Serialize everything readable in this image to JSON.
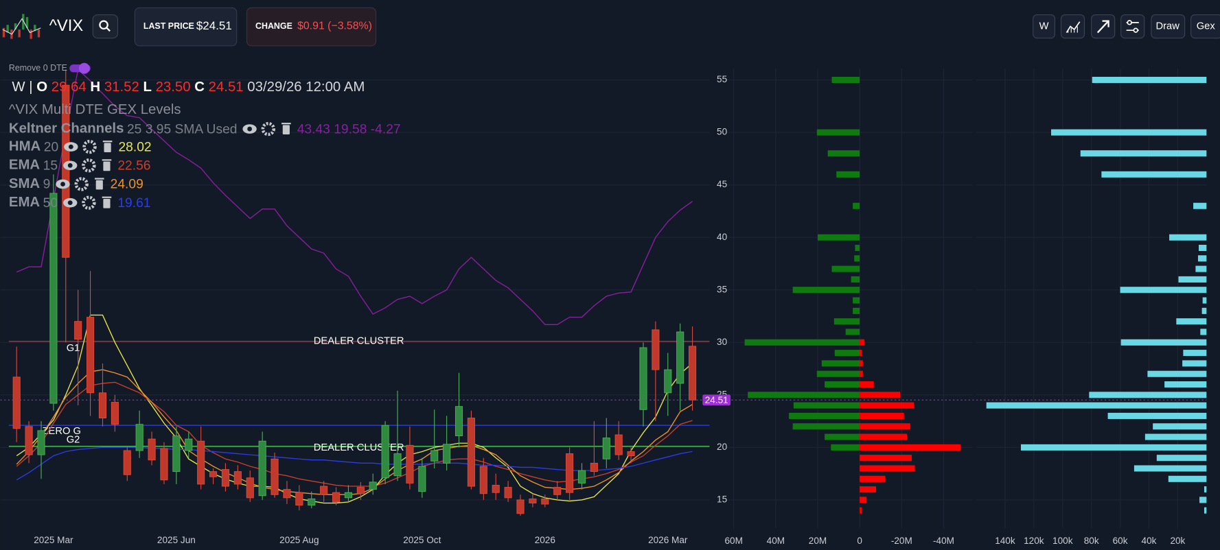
{
  "header": {
    "symbol": "^VIX",
    "last_price_label": "LAST PRICE",
    "last_price": "$24.51",
    "change_label": "CHANGE",
    "change": "$0.91 (−3.58%)",
    "buttons": [
      "W",
      "Draw",
      "Gex"
    ]
  },
  "toggle_label": "Remove 0 DTE",
  "ohlc": {
    "interval": "W |",
    "open_label": "O",
    "open": "29.64",
    "high_label": "H",
    "high": "31.52",
    "low_label": "L",
    "low": "23.50",
    "close_label": "C",
    "close": "24.51",
    "timestamp": "03/29/26 12:00 AM"
  },
  "study_title": "^VIX Multi DTE GEX Levels",
  "chart_data": [
    {
      "type": "candlestick",
      "categories": [
        null,
        null,
        null,
        "2025 Mar",
        null,
        null,
        null,
        null,
        null,
        null,
        null,
        null,
        null,
        "2025 Jun",
        null,
        null,
        null,
        null,
        null,
        null,
        null,
        null,
        null,
        "2025 Aug",
        null,
        null,
        null,
        null,
        null,
        null,
        null,
        null,
        null,
        "2025 Oct",
        null,
        null,
        null,
        null,
        null,
        null,
        null,
        null,
        null,
        "2026",
        null,
        null,
        null,
        null,
        null,
        null,
        null,
        null,
        null,
        "2026 Mar",
        null,
        null
      ],
      "open": [
        26.7,
        22.0,
        19.3,
        24.2,
        54.5,
        32.0,
        32.4,
        25.2,
        24.3,
        19.7,
        19.7,
        20.8,
        19.9,
        17.7,
        19.7,
        20.6,
        17.7,
        17.9,
        17.7,
        17.1,
        15.4,
        18.9,
        16.0,
        15.7,
        14.5,
        16.3,
        15.7,
        15.2,
        16.2,
        16.0,
        17.1,
        17.3,
        20.2,
        15.8,
        18.7,
        18.5,
        21.1,
        22.8,
        18.2,
        16.4,
        16.2,
        15.0,
        15.1,
        15.1,
        16.2,
        19.4,
        16.6,
        18.5,
        18.9,
        21.2,
        19.6,
        23.6,
        31.2,
        25.2,
        26.1,
        29.64
      ],
      "high": [
        29.6,
        22.5,
        22.5,
        46.0,
        56.0,
        35.0,
        36.8,
        28.0,
        25.0,
        20.0,
        23.5,
        21.5,
        20.5,
        22.0,
        21.5,
        22.0,
        18.0,
        18.5,
        18.3,
        17.8,
        21.5,
        19.5,
        16.8,
        16.4,
        15.8,
        16.8,
        16.2,
        16.4,
        16.7,
        17.5,
        22.5,
        25.4,
        22.0,
        19.0,
        23.6,
        23.0,
        27.1,
        23.5,
        19.0,
        17.5,
        16.8,
        15.5,
        15.6,
        15.5,
        16.8,
        20.0,
        18.5,
        22.5,
        22.8,
        22.5,
        20.0,
        30.0,
        32.0,
        29.0,
        31.8,
        31.52
      ],
      "low": [
        20.5,
        18.5,
        17.0,
        23.5,
        30.0,
        24.0,
        23.0,
        22.0,
        21.5,
        16.8,
        19.0,
        18.3,
        16.5,
        16.5,
        19.0,
        16.0,
        16.5,
        15.8,
        16.0,
        14.8,
        15.0,
        15.2,
        14.6,
        14.0,
        14.2,
        14.8,
        14.5,
        14.8,
        15.0,
        15.5,
        16.5,
        16.8,
        16.0,
        15.2,
        18.0,
        17.8,
        20.0,
        16.0,
        15.0,
        15.0,
        14.8,
        13.5,
        14.3,
        14.3,
        15.0,
        15.0,
        16.0,
        17.3,
        18.0,
        18.8,
        18.5,
        22.0,
        22.5,
        23.0,
        23.5,
        23.5
      ],
      "close": [
        21.8,
        19.3,
        21.6,
        44.2,
        38.1,
        30.3,
        25.2,
        22.8,
        22.2,
        17.4,
        22.2,
        18.8,
        16.9,
        21.1,
        20.8,
        16.5,
        17.2,
        16.3,
        16.5,
        15.2,
        20.6,
        15.5,
        15.2,
        14.5,
        15.1,
        15.5,
        14.8,
        15.7,
        15.6,
        16.7,
        22.1,
        19.4,
        16.6,
        18.2,
        19.7,
        20.3,
        23.9,
        16.3,
        15.6,
        15.7,
        15.2,
        13.7,
        14.7,
        14.6,
        15.5,
        15.7,
        17.8,
        17.7,
        20.9,
        19.3,
        19.2,
        29.5,
        27.4,
        27.4,
        31.0,
        24.51
      ],
      "up_color": "#2f8a3f",
      "down_color": "#c0392b",
      "series": [
        {
          "name": "Keltner Channels",
          "params": "25 3.95 SMA Used",
          "label": "43.43 19.58 -4.27",
          "color": "#8a1fa0",
          "values": [
            36.7,
            37.2,
            37.2,
            43.6,
            50.0,
            56.0,
            54.9,
            53.7,
            52.5,
            51.6,
            51.4,
            50.3,
            49.2,
            48.1,
            47.4,
            46.6,
            45.2,
            44.0,
            42.9,
            41.8,
            42.7,
            42.7,
            41.1,
            40.0,
            38.9,
            38.5,
            37.0,
            36.3,
            34.4,
            32.7,
            33.3,
            34.1,
            34.4,
            33.7,
            34.4,
            35.0,
            37.0,
            38.1,
            37.0,
            35.9,
            35.2,
            34.1,
            33.0,
            31.7,
            31.7,
            32.4,
            32.4,
            33.5,
            34.4,
            34.7,
            34.8,
            37.4,
            40.0,
            41.5,
            42.6,
            43.43
          ]
        },
        {
          "name": "HMA",
          "params": "20",
          "label": "28.02",
          "color": "#e6e64a",
          "values": [
            19.2,
            20.0,
            21.3,
            22.6,
            25.0,
            27.8,
            32.6,
            32.6,
            30.0,
            27.8,
            25.6,
            24.0,
            22.3,
            20.9,
            18.9,
            18.2,
            17.5,
            17.0,
            16.6,
            16.3,
            16.3,
            16.2,
            15.6,
            15.1,
            14.9,
            14.7,
            14.7,
            14.8,
            15.3,
            16.0,
            17.4,
            18.5,
            19.3,
            19.6,
            20.0,
            20.2,
            20.4,
            20.4,
            20.0,
            19.0,
            18.1,
            16.3,
            15.6,
            15.2,
            15.0,
            14.9,
            15.0,
            15.3,
            16.4,
            17.5,
            19.7,
            21.4,
            22.9,
            25.4,
            27.0,
            28.02
          ]
        },
        {
          "name": "EMA",
          "params": "15",
          "label": "22.56",
          "color": "#c8402c",
          "values": [
            18.2,
            19.2,
            20.4,
            22.3,
            24.1,
            25.0,
            25.9,
            26.1,
            26.2,
            25.7,
            25.2,
            24.3,
            23.4,
            22.1,
            21.5,
            20.2,
            19.5,
            18.9,
            18.6,
            18.2,
            17.9,
            17.5,
            17.3,
            17.0,
            16.8,
            16.6,
            16.4,
            16.3,
            16.3,
            16.3,
            16.6,
            17.1,
            17.6,
            18.2,
            18.5,
            18.8,
            18.9,
            18.9,
            18.6,
            18.2,
            17.9,
            17.5,
            17.2,
            16.9,
            16.7,
            16.8,
            17.0,
            17.2,
            17.5,
            17.9,
            18.6,
            19.2,
            20.2,
            21.1,
            22.2,
            22.56
          ]
        },
        {
          "name": "SMA",
          "params": "9",
          "label": "24.09",
          "color": "#f0922b",
          "values": [
            18.4,
            19.6,
            21.1,
            22.9,
            24.8,
            26.1,
            27.2,
            27.4,
            27.1,
            26.7,
            25.5,
            24.3,
            22.9,
            21.6,
            19.7,
            18.9,
            18.2,
            17.6,
            17.1,
            16.6,
            16.2,
            16.0,
            15.8,
            15.7,
            15.6,
            15.5,
            15.5,
            15.5,
            15.6,
            16.1,
            17.0,
            17.8,
            18.4,
            18.9,
            19.7,
            19.9,
            20.1,
            20.2,
            19.8,
            19.3,
            18.3,
            17.3,
            16.7,
            16.2,
            16.1,
            16.0,
            16.1,
            16.3,
            16.9,
            17.6,
            18.7,
            19.6,
            20.7,
            21.5,
            23.4,
            24.09
          ]
        },
        {
          "name": "EMA",
          "params": "50",
          "label": "19.61",
          "color": "#2c3ce6",
          "values": [
            16.9,
            17.6,
            18.4,
            19.2,
            19.6,
            19.8,
            19.9,
            20.0,
            20.0,
            20.0,
            20.0,
            19.9,
            19.9,
            19.8,
            19.8,
            19.7,
            19.6,
            19.5,
            19.4,
            19.3,
            19.2,
            19.1,
            19.0,
            18.9,
            18.8,
            18.8,
            18.7,
            18.6,
            18.5,
            18.5,
            18.4,
            18.4,
            18.4,
            18.4,
            18.5,
            18.5,
            18.5,
            18.4,
            18.3,
            18.3,
            18.2,
            18.1,
            18.1,
            18.0,
            17.9,
            17.8,
            17.8,
            17.8,
            17.9,
            18.0,
            18.2,
            18.5,
            18.8,
            19.1,
            19.4,
            19.61
          ]
        }
      ],
      "levels": [
        {
          "label": "DEALER CLUSTER",
          "tag": "G1",
          "value": 30.1,
          "color": "#d03030"
        },
        {
          "label": "DEALER CLUSTER",
          "tag": "G2",
          "value": 20.1,
          "color": "#4ccf4c"
        },
        {
          "label": "ZERO G",
          "value": 22.1,
          "color": "#2b3fd6"
        }
      ],
      "last": 24.51,
      "last_color": "#9b30d0",
      "ylim": [
        12.3,
        56.1
      ],
      "yticks": [
        15,
        20,
        25,
        30,
        35,
        40,
        45,
        50,
        55
      ],
      "grid": true
    },
    {
      "type": "bar",
      "orientation": "horizontal",
      "y": [
        14,
        15,
        16,
        17,
        18,
        19,
        20,
        21,
        22,
        23,
        24,
        25,
        26,
        27,
        28,
        29,
        30,
        31,
        32,
        33,
        34,
        35,
        36,
        37,
        38,
        39,
        40,
        41,
        42,
        43,
        44,
        45,
        46,
        47,
        48,
        49,
        50,
        51,
        52,
        53,
        54,
        55
      ],
      "series": [
        {
          "color": "#0f7a0f",
          "values": [
            null,
            null,
            null,
            null,
            null,
            null,
            13700000,
            16700000,
            31900000,
            33700000,
            31500000,
            53300000,
            16700000,
            20400000,
            18100000,
            11900000,
            54800000,
            6700000,
            12200000,
            3300000,
            3300000,
            31900000,
            4100000,
            13300000,
            2600000,
            2200000,
            20000000,
            null,
            null,
            3300000,
            null,
            null,
            11100000,
            null,
            15200000,
            null,
            20400000,
            null,
            null,
            null,
            null,
            13300000
          ]
        },
        {
          "color": "#ff0000",
          "values": [
            -1100000,
            -3300000,
            -7800000,
            -12200000,
            -26300000,
            -24800000,
            -48100000,
            -22600000,
            -24100000,
            -21100000,
            -25900000,
            -19300000,
            -6700000,
            -1500000,
            -1500000,
            -1100000,
            -2200000,
            null,
            null,
            null,
            null,
            null,
            null,
            null,
            null,
            null,
            null,
            null,
            null,
            null,
            null,
            null,
            null,
            null,
            null,
            null,
            null,
            null,
            null,
            null,
            null,
            null
          ]
        }
      ],
      "xlim": [
        63000000,
        -53700000
      ],
      "xticks": [
        {
          "value": 60000000,
          "label": "60M"
        },
        {
          "value": 40000000,
          "label": "40M"
        },
        {
          "value": 20000000,
          "label": "20M"
        },
        0,
        {
          "value": -20000000,
          "label": "-20M"
        },
        {
          "value": -40000000,
          "label": "-40M"
        }
      ],
      "grid": true
    },
    {
      "type": "bar",
      "orientation": "horizontal",
      "y": [
        14,
        15,
        16,
        17,
        18,
        19,
        20,
        21,
        22,
        23,
        24,
        25,
        26,
        27,
        28,
        29,
        30,
        31,
        32,
        33,
        34,
        35,
        36,
        37,
        38,
        39,
        40,
        41,
        42,
        43,
        44,
        45,
        46,
        47,
        48,
        49,
        50,
        51,
        52,
        53,
        54,
        55
      ],
      "series": [
        {
          "color": "#6ad8e4",
          "values": [
            1600,
            4900,
            1600,
            26500,
            50300,
            34600,
            129000,
            42700,
            37300,
            68600,
            153000,
            81600,
            29200,
            41000,
            16800,
            16200,
            59500,
            4300,
            21000,
            3200,
            2700,
            60000,
            19500,
            7600,
            5900,
            5400,
            25900,
            null,
            null,
            9200,
            null,
            null,
            73000,
            null,
            87600,
            null,
            108000,
            null,
            null,
            null,
            null,
            79500
          ]
        }
      ],
      "xlim": [
        160000,
        0
      ],
      "xticks": [
        {
          "value": 140000,
          "label": "140k"
        },
        {
          "value": 120000,
          "label": "120k"
        },
        {
          "value": 100000,
          "label": "100k"
        },
        {
          "value": 80000,
          "label": "80k"
        },
        {
          "value": 60000,
          "label": "60k"
        },
        {
          "value": 40000,
          "label": "40k"
        },
        {
          "value": 20000,
          "label": "20k"
        }
      ],
      "grid": true
    }
  ]
}
